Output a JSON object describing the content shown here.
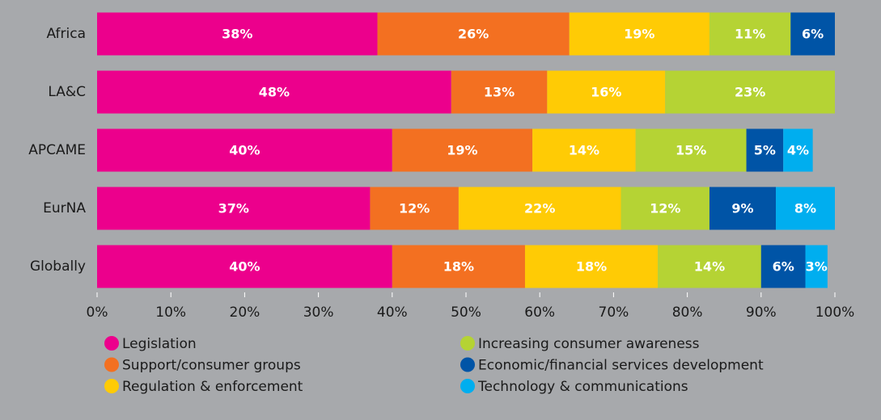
{
  "chart_data": {
    "type": "stacked-bar-horizontal",
    "categories": [
      "Africa",
      "LA&C",
      "APCAME",
      "EurNA",
      "Globally"
    ],
    "series": [
      {
        "name": "Legislation",
        "color": "#ec008c",
        "values": [
          38,
          48,
          40,
          37,
          40
        ],
        "value_labels": [
          "38%",
          "48%",
          "40%",
          "37%",
          "40%"
        ]
      },
      {
        "name": "Support/consumer groups",
        "color": "#f37021",
        "values": [
          26,
          13,
          19,
          12,
          18
        ],
        "value_labels": [
          "26%",
          "13%",
          "19%",
          "12%",
          "18%"
        ]
      },
      {
        "name": "Regulation & enforcement",
        "color": "#ffcb05",
        "values": [
          19,
          16,
          14,
          22,
          18
        ],
        "value_labels": [
          "19%",
          "16%",
          "14%",
          "22%",
          "18%"
        ]
      },
      {
        "name": "Increasing consumer awareness",
        "color": "#b5d334",
        "values": [
          11,
          23,
          15,
          12,
          14
        ],
        "value_labels": [
          "11%",
          "23%",
          "15%",
          "12%",
          "14%"
        ]
      },
      {
        "name": "Economic/financial services development",
        "color": "#0054a6",
        "values": [
          6,
          null,
          5,
          9,
          6
        ],
        "value_labels": [
          "6%",
          null,
          "5%",
          "9%",
          "6%"
        ]
      },
      {
        "name": "Technology & communications",
        "color": "#00aeef",
        "values": [
          null,
          null,
          4,
          8,
          3
        ],
        "value_labels": [
          null,
          null,
          "4%",
          "8%",
          "3%"
        ]
      }
    ],
    "xlim": [
      0,
      100
    ],
    "xticks": [
      {
        "value": 0,
        "label": "0%"
      },
      {
        "value": 10,
        "label": "10%"
      },
      {
        "value": 20,
        "label": "20%"
      },
      {
        "value": 30,
        "label": "30%"
      },
      {
        "value": 40,
        "label": "40%"
      },
      {
        "value": 50,
        "label": "50%"
      },
      {
        "value": 60,
        "label": "60%"
      },
      {
        "value": 70,
        "label": "70%"
      },
      {
        "value": 80,
        "label": "80%"
      },
      {
        "value": 90,
        "label": "90%"
      },
      {
        "value": 100,
        "label": "100%"
      }
    ],
    "legend": "bottom"
  }
}
